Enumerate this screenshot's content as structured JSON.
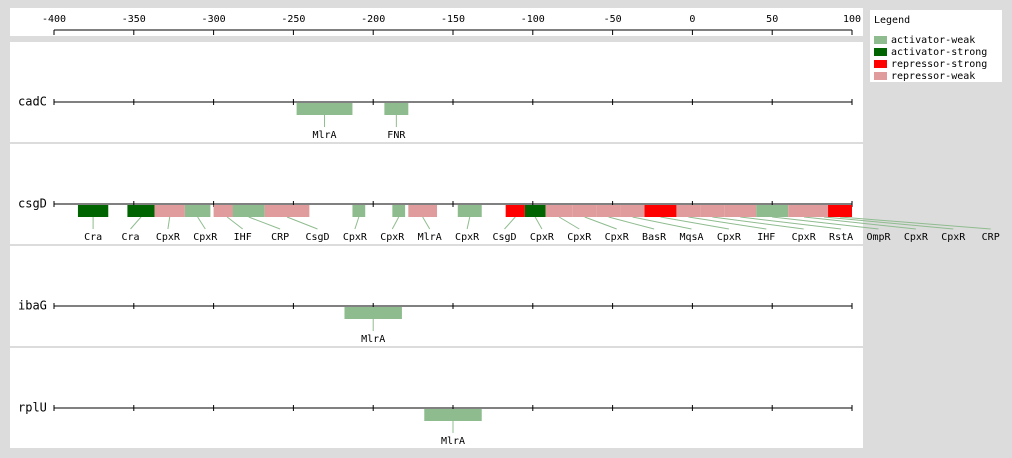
{
  "chart_data": {
    "type": "binding-sites",
    "xlim": [
      -400,
      100
    ],
    "xticks": [
      -400,
      -350,
      -300,
      -250,
      -200,
      -150,
      -100,
      -50,
      0,
      50,
      100
    ],
    "legend_title": "Legend",
    "legend": [
      {
        "name": "activator-weak",
        "color": "#8fbc8f"
      },
      {
        "name": "activator-strong",
        "color": "#006400"
      },
      {
        "name": "repressor-strong",
        "color": "#ff0000"
      },
      {
        "name": "repressor-weak",
        "color": "#e09c9c"
      }
    ],
    "genes": [
      {
        "name": "cadC",
        "sites": [
          {
            "label": "MlrA",
            "kind": "activator-weak",
            "start": -248,
            "end": -213
          },
          {
            "label": "FNR",
            "kind": "activator-weak",
            "start": -193,
            "end": -178
          }
        ]
      },
      {
        "name": "csgD",
        "sites": [
          {
            "label": "Cra",
            "kind": "activator-strong",
            "start": -385,
            "end": -366
          },
          {
            "label": "Cra",
            "kind": "activator-strong",
            "start": -354,
            "end": -337
          },
          {
            "label": "CpxR",
            "kind": "repressor-weak",
            "start": -337,
            "end": -318
          },
          {
            "label": "CpxR",
            "kind": "activator-weak",
            "start": -318,
            "end": -302
          },
          {
            "label": "IHF",
            "kind": "repressor-weak",
            "start": -300,
            "end": -283
          },
          {
            "label": "CRP",
            "kind": "activator-weak",
            "start": -288,
            "end": -268
          },
          {
            "label": "CsgD",
            "kind": "repressor-weak",
            "start": -268,
            "end": -240
          },
          {
            "label": "CpxR",
            "kind": "activator-weak",
            "start": -213,
            "end": -205
          },
          {
            "label": "CpxR",
            "kind": "activator-weak",
            "start": -188,
            "end": -180
          },
          {
            "label": "MlrA",
            "kind": "repressor-weak",
            "start": -178,
            "end": -160
          },
          {
            "label": "CpxR",
            "kind": "activator-weak",
            "start": -147,
            "end": -132
          },
          {
            "label": "CsgD",
            "kind": "repressor-strong",
            "start": -117,
            "end": -105
          },
          {
            "label": "CpxR",
            "kind": "activator-strong",
            "start": -105,
            "end": -92
          },
          {
            "label": "CpxR",
            "kind": "repressor-weak",
            "start": -92,
            "end": -75
          },
          {
            "label": "CpxR",
            "kind": "repressor-weak",
            "start": -75,
            "end": -60
          },
          {
            "label": "BasR",
            "kind": "repressor-weak",
            "start": -60,
            "end": -45
          },
          {
            "label": "MqsA",
            "kind": "repressor-weak",
            "start": -45,
            "end": -30
          },
          {
            "label": "CpxR",
            "kind": "repressor-strong",
            "start": -30,
            "end": -10
          },
          {
            "label": "IHF",
            "kind": "repressor-weak",
            "start": -10,
            "end": 5
          },
          {
            "label": "CpxR",
            "kind": "repressor-weak",
            "start": 5,
            "end": 20
          },
          {
            "label": "RstA",
            "kind": "repressor-weak",
            "start": 20,
            "end": 40
          },
          {
            "label": "OmpR",
            "kind": "activator-weak",
            "start": 40,
            "end": 60
          },
          {
            "label": "CpxR",
            "kind": "repressor-weak",
            "start": 60,
            "end": 80
          },
          {
            "label": "CpxR",
            "kind": "repressor-weak",
            "start": 75,
            "end": 90
          },
          {
            "label": "CRP",
            "kind": "repressor-strong",
            "start": 85,
            "end": 100
          }
        ]
      },
      {
        "name": "ibaG",
        "sites": [
          {
            "label": "MlrA",
            "kind": "activator-weak",
            "start": -218,
            "end": -182
          }
        ]
      },
      {
        "name": "rplU",
        "sites": [
          {
            "label": "MlrA",
            "kind": "activator-weak",
            "start": -168,
            "end": -132
          }
        ]
      }
    ]
  }
}
